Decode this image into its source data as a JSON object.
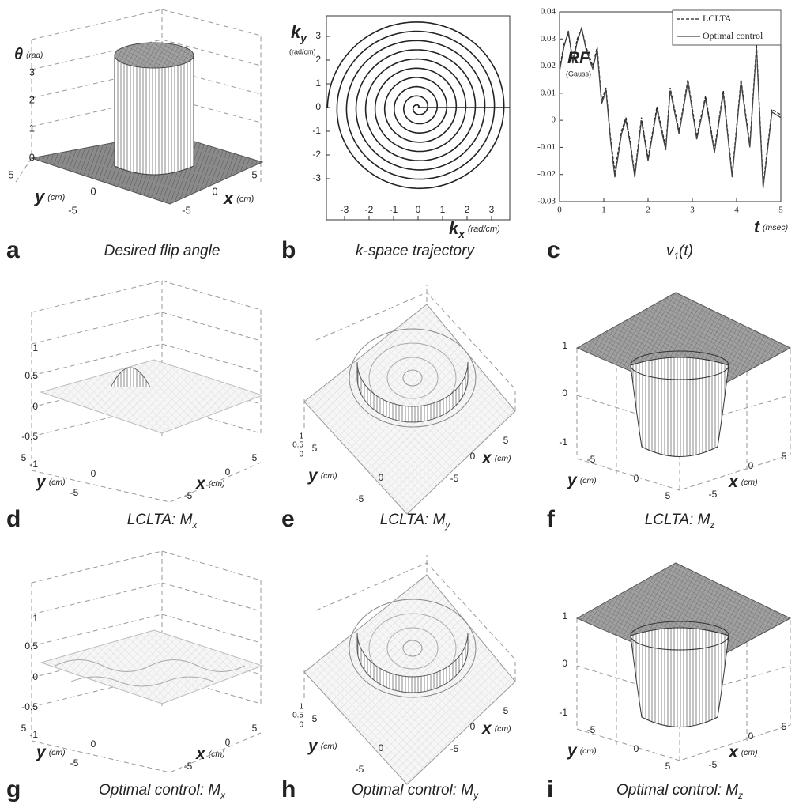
{
  "panels": [
    {
      "letter": "a",
      "caption": "Desired flip angle",
      "z_label": "θ",
      "z_unit": "(rad)",
      "z_ticks": [
        3,
        2,
        1,
        0
      ],
      "y_label": "y",
      "y_unit": "(cm)",
      "y_ticks": [
        5,
        0,
        -5
      ],
      "x_label": "x",
      "x_unit": "(cm)",
      "x_ticks": [
        5,
        0,
        -5
      ]
    },
    {
      "letter": "b",
      "caption": "k-space trajectory",
      "y_label": "k",
      "y_label_sub": "y",
      "y_unit": "(rad/cm)",
      "y_ticks": [
        3,
        2,
        1,
        0,
        -1,
        -2,
        -3
      ],
      "x_label": "k",
      "x_label_sub": "x",
      "x_unit": "(rad/cm)",
      "x_ticks": [
        -3,
        -2,
        -1,
        0,
        1,
        2,
        3
      ]
    },
    {
      "letter": "c",
      "caption": "v",
      "caption_sub": "1",
      "caption_tail": "(t)",
      "chart_data": {
        "type": "line",
        "y_label": "RF",
        "y_unit": "(Gauss)",
        "x_label": "t",
        "x_unit": "(msec)",
        "x": [
          0,
          0.1,
          0.2,
          0.3,
          0.4,
          0.5,
          0.6,
          0.75,
          0.85,
          0.95,
          1.05,
          1.15,
          1.25,
          1.4,
          1.5,
          1.6,
          1.7,
          1.85,
          2.0,
          2.2,
          2.4,
          2.5,
          2.7,
          2.9,
          3.1,
          3.3,
          3.5,
          3.7,
          3.9,
          4.1,
          4.3,
          4.45,
          4.6,
          4.8,
          5
        ],
        "series": [
          {
            "name": "LCLTA",
            "color": "#222222",
            "dash": true,
            "values": [
              0.019,
              0.028,
              0.032,
              0.022,
              0.03,
              0.034,
              0.027,
              0.02,
              0.027,
              0.007,
              0.012,
              -0.006,
              -0.019,
              -0.004,
              0.001,
              -0.008,
              -0.02,
              0.001,
              -0.014,
              0.005,
              -0.01,
              0.012,
              -0.004,
              0.015,
              -0.006,
              0.009,
              -0.011,
              0.011,
              -0.02,
              0.015,
              -0.009,
              0.028,
              -0.024,
              0.004,
              0.002
            ]
          },
          {
            "name": "Optimal control",
            "color": "#444444",
            "dash": false,
            "values": [
              0.018,
              0.027,
              0.033,
              0.021,
              0.029,
              0.034,
              0.026,
              0.019,
              0.026,
              0.006,
              0.011,
              -0.007,
              -0.021,
              -0.005,
              0,
              -0.009,
              -0.021,
              0,
              -0.015,
              0.004,
              -0.011,
              0.011,
              -0.005,
              0.014,
              -0.007,
              0.008,
              -0.012,
              0.01,
              -0.021,
              0.014,
              -0.01,
              0.027,
              -0.025,
              0.003,
              0.001
            ]
          }
        ],
        "xlim": [
          0,
          5
        ],
        "ylim": [
          -0.03,
          0.04
        ],
        "xticks": [
          0,
          1,
          2,
          3,
          4,
          5
        ],
        "yticks": [
          0.04,
          0.03,
          0.02,
          0.01,
          0,
          -0.01,
          -0.02,
          -0.03
        ]
      }
    },
    {
      "letter": "d",
      "caption": "LCLTA: M",
      "caption_sub": "x",
      "z_ticks": [
        1,
        0.5,
        0,
        -0.5,
        -1
      ],
      "y_label": "y",
      "y_unit": "(cm)",
      "y_ticks": [
        5,
        0,
        -5
      ],
      "x_label": "x",
      "x_unit": "(cm)",
      "x_ticks": [
        -5,
        0,
        5
      ]
    },
    {
      "letter": "e",
      "caption": "LCLTA: M",
      "caption_sub": "y",
      "z_ticks": [
        1,
        0.5,
        0
      ],
      "y_label": "y",
      "y_unit": "(cm)",
      "y_ticks": [
        5,
        0,
        -5
      ],
      "x_label": "x",
      "x_unit": "(cm)",
      "x_ticks": [
        5,
        0,
        -5
      ]
    },
    {
      "letter": "f",
      "caption": "LCLTA: M",
      "caption_sub": "z",
      "z_ticks": [
        1,
        0,
        -1
      ],
      "y_label": "y",
      "y_unit": "(cm)",
      "y_ticks": [
        -5,
        0,
        5
      ],
      "x_label": "x",
      "x_unit": "(cm)",
      "x_ticks": [
        5,
        0,
        -5
      ]
    },
    {
      "letter": "g",
      "caption": "Optimal control: M",
      "caption_sub": "x",
      "z_ticks": [
        1,
        0.5,
        0,
        -0.5,
        -1
      ],
      "y_label": "y",
      "y_unit": "(cm)",
      "y_ticks": [
        5,
        0,
        -5
      ],
      "x_label": "x",
      "x_unit": "(cm)",
      "x_ticks": [
        -5,
        0,
        5
      ]
    },
    {
      "letter": "h",
      "caption": "Optimal control: M",
      "caption_sub": "y",
      "z_ticks": [
        1,
        0.5,
        0
      ],
      "y_label": "y",
      "y_unit": "(cm)",
      "y_ticks": [
        5,
        0,
        -5
      ],
      "x_label": "x",
      "x_unit": "(cm)",
      "x_ticks": [
        5,
        0,
        -5
      ]
    },
    {
      "letter": "i",
      "caption": "Optimal control: M",
      "caption_sub": "z",
      "z_ticks": [
        1,
        0,
        -1
      ],
      "y_label": "y",
      "y_unit": "(cm)",
      "y_ticks": [
        -5,
        0,
        5
      ],
      "x_label": "x",
      "x_unit": "(cm)",
      "x_ticks": [
        5,
        0,
        -5
      ]
    }
  ]
}
